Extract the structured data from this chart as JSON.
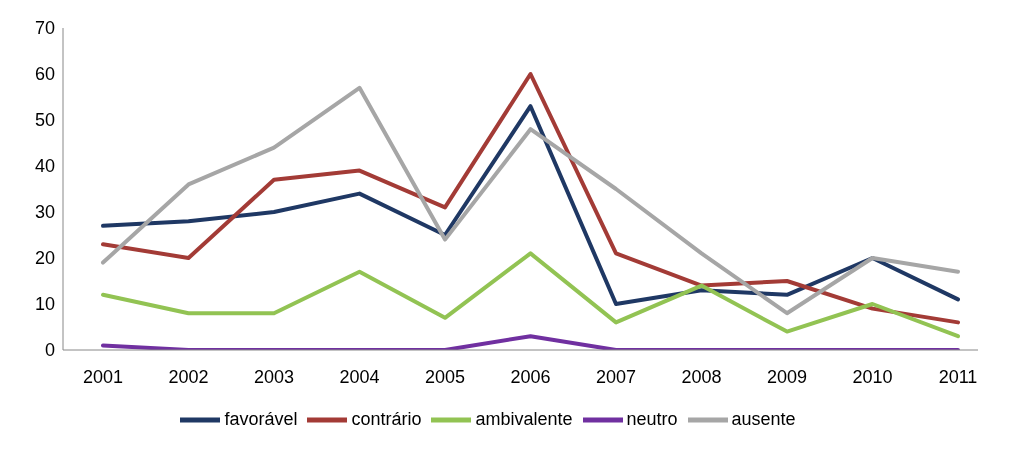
{
  "chart_data": {
    "type": "line",
    "categories": [
      "2001",
      "2002",
      "2003",
      "2004",
      "2005",
      "2006",
      "2007",
      "2008",
      "2009",
      "2010",
      "2011"
    ],
    "series": [
      {
        "name": "favorável",
        "color": "#1f3864",
        "values": [
          27,
          28,
          30,
          34,
          25,
          53,
          10,
          13,
          12,
          20,
          11
        ]
      },
      {
        "name": "contrário",
        "color": "#a33b36",
        "values": [
          23,
          20,
          37,
          39,
          31,
          60,
          21,
          14,
          15,
          9,
          6
        ]
      },
      {
        "name": "ambivalente",
        "color": "#92c353",
        "values": [
          12,
          8,
          8,
          17,
          7,
          21,
          6,
          14,
          4,
          10,
          3
        ]
      },
      {
        "name": "neutro",
        "color": "#7030a0",
        "values": [
          1,
          0,
          0,
          0,
          0,
          3,
          0,
          0,
          0,
          0,
          0
        ]
      },
      {
        "name": "ausente",
        "color": "#a6a6a6",
        "values": [
          19,
          36,
          44,
          57,
          24,
          48,
          35,
          21,
          8,
          20,
          17
        ]
      }
    ],
    "ylim": [
      0,
      70
    ],
    "yticks": [
      0,
      10,
      20,
      30,
      40,
      50,
      60,
      70
    ],
    "grid": false,
    "legend": "bottom",
    "marker": "none",
    "line_style": "solid"
  }
}
